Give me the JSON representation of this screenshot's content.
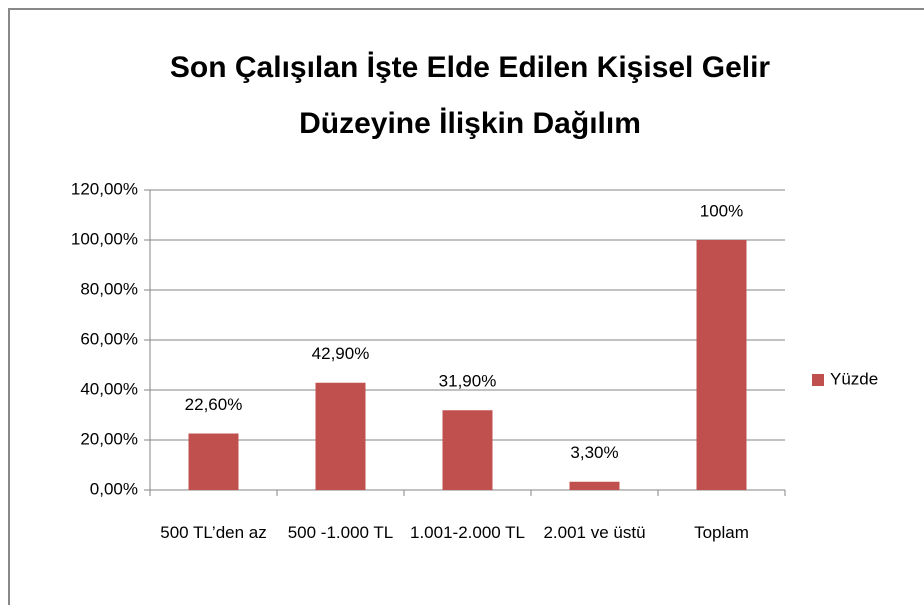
{
  "chart_data": {
    "type": "bar",
    "title": "Son Çalışılan İşte Elde Edilen Kişisel Gelir Düzeyine İlişkin Dağılım",
    "categories": [
      "500 TL’den az",
      "500 -1.000 TL",
      "1.001-2.000 TL",
      "2.001 ve üstü",
      "Toplam"
    ],
    "series": [
      {
        "name": "Yüzde",
        "color": "#c0504d",
        "values": [
          22.6,
          42.9,
          31.9,
          3.3,
          100
        ],
        "value_labels": [
          "22,60%",
          "42,90%",
          "31,90%",
          "3,30%",
          "100%"
        ]
      }
    ],
    "ylim": [
      0,
      120
    ],
    "yticks": [
      {
        "value": 0,
        "label": "0,00%"
      },
      {
        "value": 20,
        "label": "20,00%"
      },
      {
        "value": 40,
        "label": "40,00%"
      },
      {
        "value": 60,
        "label": "60,00%"
      },
      {
        "value": 80,
        "label": "80,00%"
      },
      {
        "value": 100,
        "label": "100,00%"
      },
      {
        "value": 120,
        "label": "120,00%"
      }
    ],
    "grid": true,
    "legend": "right"
  }
}
